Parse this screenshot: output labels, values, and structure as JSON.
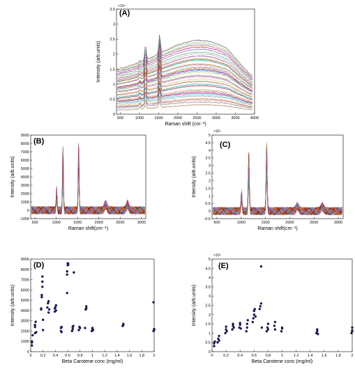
{
  "chart_data": [
    {
      "panel": "(A)",
      "type": "line",
      "xlabel": "Raman shift (cm⁻¹)",
      "ylabel": "Intensity (arb.units)",
      "exponent": "×10⁴",
      "xlim": [
        400,
        4000
      ],
      "ylim": [
        0,
        3.5
      ],
      "xticks": [
        "500",
        "1000",
        "1500",
        "2000",
        "2500",
        "3000",
        "3500",
        "4000"
      ],
      "yticks": [
        "0",
        "0.5",
        "1",
        "1.5",
        "2",
        "2.5",
        "3",
        "3.5"
      ],
      "series_count": 60,
      "peaks": [
        1008,
        1157,
        1525
      ],
      "baseline_range": [
        0.15,
        1.65
      ],
      "grid": false
    },
    {
      "panel": "(B)",
      "type": "line",
      "xlabel": "Raman shift(cm⁻¹)",
      "ylabel": "Intensity (arb.units)",
      "xlim": [
        400,
        3100
      ],
      "ylim": [
        -1000,
        9000
      ],
      "xticks": [
        "500",
        "1000",
        "1500",
        "2000",
        "2500",
        "3000"
      ],
      "yticks": [
        "-1000",
        "0",
        "1000",
        "2000",
        "3000",
        "4000",
        "5000",
        "6000",
        "7000",
        "8000",
        "9000"
      ],
      "series_count": 30,
      "peaks": [
        {
          "x": 1008,
          "y": 2700
        },
        {
          "x": 1157,
          "y": 7600
        },
        {
          "x": 1525,
          "y": 8400
        },
        {
          "x": 2160,
          "y": 900
        },
        {
          "x": 2670,
          "y": 900
        }
      ],
      "grid": false
    },
    {
      "panel": "(C)",
      "type": "line",
      "xlabel": "Raman shift(cm⁻¹)",
      "ylabel": "Intensity (arb.units)",
      "exponent": "×10⁴",
      "xlim": [
        400,
        3100
      ],
      "ylim": [
        -0.5,
        5
      ],
      "xticks": [
        "500",
        "1000",
        "1500",
        "2000",
        "2500",
        "3000"
      ],
      "yticks": [
        "-0.5",
        "0",
        "0.5",
        "1",
        "1.5",
        "2",
        "2.5",
        "3",
        "3.5",
        "4",
        "4.5",
        "5"
      ],
      "series_count": 30,
      "peaks": [
        {
          "x": 1008,
          "y": 1.3
        },
        {
          "x": 1157,
          "y": 3.8
        },
        {
          "x": 1525,
          "y": 4.6
        },
        {
          "x": 2160,
          "y": 0.4
        },
        {
          "x": 2670,
          "y": 0.4
        }
      ],
      "grid": false
    },
    {
      "panel": "(D)",
      "type": "scatter",
      "xlabel": "Beta Carotene conc (mg/ml)",
      "ylabel": "Intensity (arb.units)",
      "xlim": [
        0,
        2
      ],
      "ylim": [
        0,
        9000
      ],
      "xticks": [
        "0",
        "0.2",
        "0.4",
        "0.6",
        "0.8",
        "1",
        "1.2",
        "1.4",
        "1.6",
        "1.8",
        "2"
      ],
      "yticks": [
        "0",
        "1000",
        "2000",
        "3000",
        "4000",
        "5000",
        "6000",
        "7000",
        "8000",
        "9000"
      ],
      "color": "#1a1a55",
      "points": [
        [
          0.02,
          600
        ],
        [
          0.02,
          900
        ],
        [
          0.02,
          1000
        ],
        [
          0.03,
          1600
        ],
        [
          0.07,
          1800
        ],
        [
          0.07,
          2400
        ],
        [
          0.07,
          2600
        ],
        [
          0.08,
          2900
        ],
        [
          0.09,
          1900
        ],
        [
          0.17,
          4100
        ],
        [
          0.17,
          4200
        ],
        [
          0.18,
          5300
        ],
        [
          0.18,
          5500
        ],
        [
          0.19,
          6300
        ],
        [
          0.19,
          6800
        ],
        [
          0.19,
          7300
        ],
        [
          0.2,
          3100
        ],
        [
          0.2,
          2100
        ],
        [
          0.27,
          4300
        ],
        [
          0.28,
          4700
        ],
        [
          0.29,
          4900
        ],
        [
          0.29,
          3800
        ],
        [
          0.3,
          4100
        ],
        [
          0.39,
          3900
        ],
        [
          0.39,
          4200
        ],
        [
          0.4,
          4300
        ],
        [
          0.41,
          4500
        ],
        [
          0.41,
          4000
        ],
        [
          0.49,
          2300
        ],
        [
          0.49,
          2000
        ],
        [
          0.5,
          2400
        ],
        [
          0.5,
          1900
        ],
        [
          0.59,
          5700
        ],
        [
          0.59,
          7500
        ],
        [
          0.59,
          7800
        ],
        [
          0.6,
          8400
        ],
        [
          0.6,
          8600
        ],
        [
          0.61,
          8500
        ],
        [
          0.67,
          2000
        ],
        [
          0.68,
          2200
        ],
        [
          0.68,
          2400
        ],
        [
          0.69,
          2500
        ],
        [
          0.7,
          7700
        ],
        [
          0.78,
          2100
        ],
        [
          0.79,
          2400
        ],
        [
          0.8,
          2300
        ],
        [
          0.88,
          2300
        ],
        [
          0.89,
          4100
        ],
        [
          0.9,
          4200
        ],
        [
          0.9,
          4400
        ],
        [
          0.99,
          2000
        ],
        [
          1.0,
          2200
        ],
        [
          1.0,
          2300
        ],
        [
          1.01,
          2100
        ],
        [
          1.49,
          2500
        ],
        [
          1.5,
          2600
        ],
        [
          1.5,
          2700
        ],
        [
          1.99,
          4800
        ],
        [
          1.99,
          2000
        ],
        [
          2.0,
          2100
        ],
        [
          2.0,
          2200
        ]
      ],
      "grid": false
    },
    {
      "panel": "(E)",
      "type": "scatter",
      "xlabel": "Beta Carotene conc (mg/ml)",
      "ylabel": "Intensity (arb.units)",
      "exponent": "×10⁴",
      "xlim": [
        0,
        2
      ],
      "ylim": [
        0,
        5
      ],
      "xticks": [
        "0",
        "0.2",
        "0.4",
        "0.6",
        "0.8",
        "1",
        "1.2",
        "1.4",
        "1.6",
        "1.8",
        "2"
      ],
      "yticks": [
        "0",
        "0.5",
        "1",
        "1.5",
        "2",
        "2.5",
        "3",
        "3.5",
        "4",
        "4.5",
        "5"
      ],
      "color": "#1a1a55",
      "points": [
        [
          0.03,
          0.3
        ],
        [
          0.03,
          0.45
        ],
        [
          0.04,
          0.55
        ],
        [
          0.08,
          0.5
        ],
        [
          0.09,
          0.7
        ],
        [
          0.1,
          0.85
        ],
        [
          0.1,
          0.6
        ],
        [
          0.19,
          1.0
        ],
        [
          0.2,
          1.2
        ],
        [
          0.2,
          1.35
        ],
        [
          0.21,
          1.1
        ],
        [
          0.29,
          1.2
        ],
        [
          0.3,
          1.4
        ],
        [
          0.3,
          1.5
        ],
        [
          0.31,
          1.3
        ],
        [
          0.39,
          1.3
        ],
        [
          0.4,
          1.45
        ],
        [
          0.4,
          1.55
        ],
        [
          0.41,
          1.25
        ],
        [
          0.49,
          1.1
        ],
        [
          0.5,
          1.3
        ],
        [
          0.5,
          1.5
        ],
        [
          0.51,
          1.7
        ],
        [
          0.58,
          1.6
        ],
        [
          0.59,
          1.8
        ],
        [
          0.6,
          2.0
        ],
        [
          0.6,
          2.2
        ],
        [
          0.61,
          2.3
        ],
        [
          0.62,
          1.9
        ],
        [
          0.68,
          2.3
        ],
        [
          0.69,
          2.45
        ],
        [
          0.7,
          2.6
        ],
        [
          0.7,
          4.6
        ],
        [
          0.71,
          1.3
        ],
        [
          0.78,
          1.1
        ],
        [
          0.79,
          1.3
        ],
        [
          0.8,
          1.5
        ],
        [
          0.8,
          1.2
        ],
        [
          0.89,
          1.4
        ],
        [
          0.9,
          1.6
        ],
        [
          0.9,
          1.2
        ],
        [
          0.99,
          1.1
        ],
        [
          1.0,
          1.3
        ],
        [
          1.0,
          1.25
        ],
        [
          1.49,
          1.0
        ],
        [
          1.5,
          1.1
        ],
        [
          1.5,
          1.2
        ],
        [
          1.51,
          0.95
        ],
        [
          1.99,
          1.0
        ],
        [
          2.0,
          1.15
        ],
        [
          2.0,
          1.3
        ],
        [
          2.0,
          1.1
        ]
      ],
      "grid": false
    }
  ]
}
